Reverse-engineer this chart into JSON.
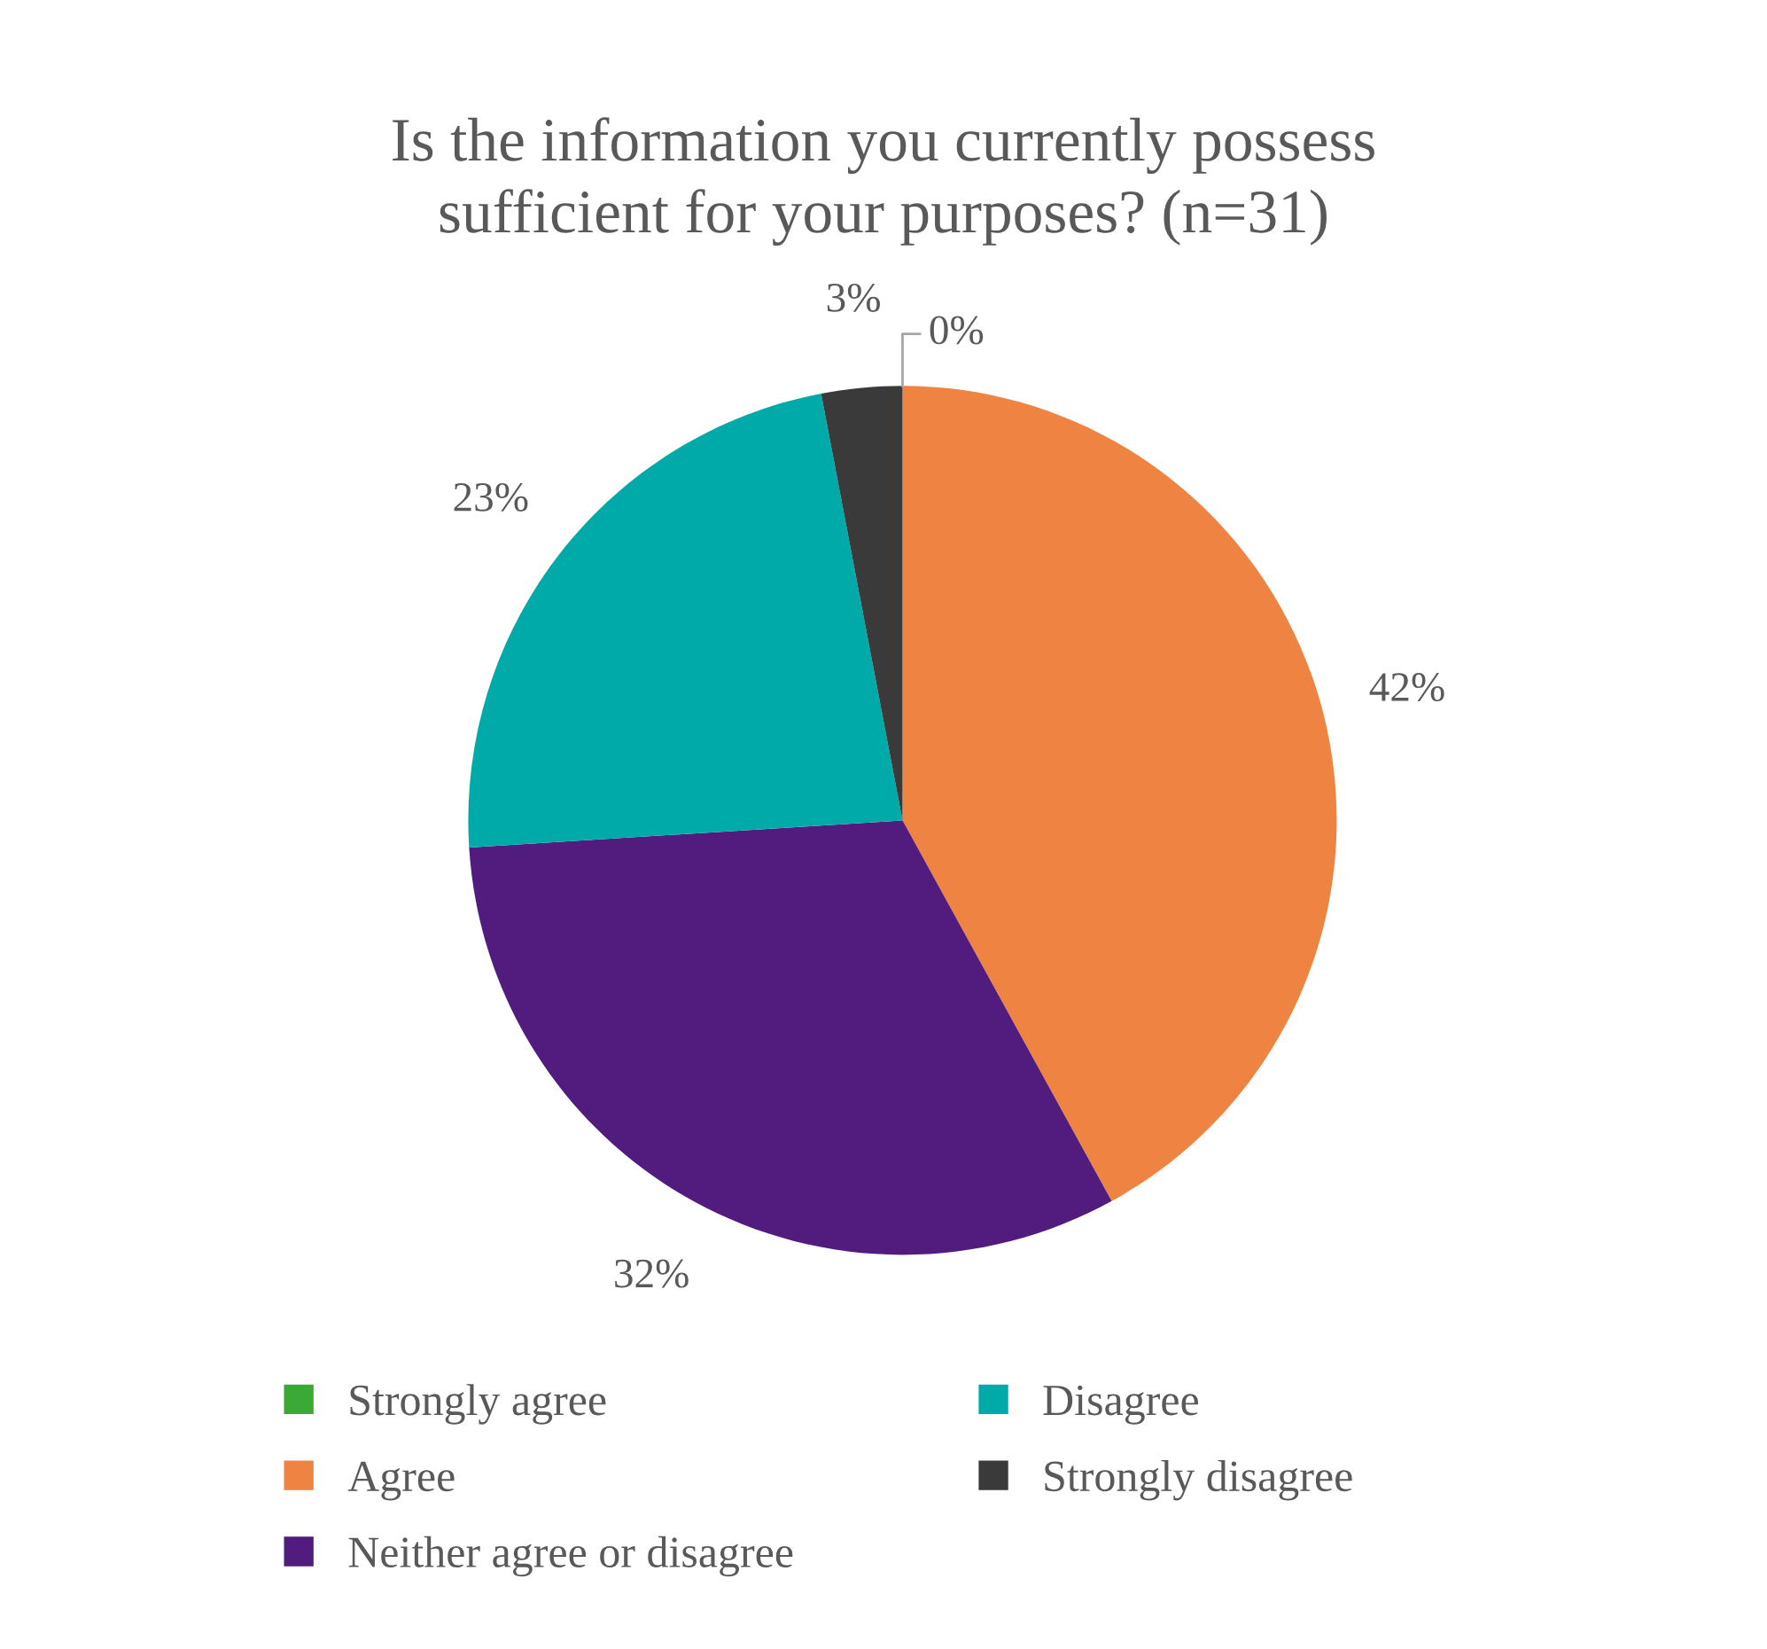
{
  "chart_data": {
    "type": "pie",
    "title": "Is the information you currently possess\nsufficient for your purposes? (n=31)",
    "categories": [
      "Strongly agree",
      "Agree",
      "Neither agree or disagree",
      "Disagree",
      "Strongly disagree"
    ],
    "values": [
      0,
      42,
      32,
      23,
      3
    ],
    "colors": [
      "#3aaa35",
      "#ef8341",
      "#521c7e",
      "#00aaa8",
      "#3a3a3a"
    ],
    "value_labels": [
      "0%",
      "42%",
      "32%",
      "23%",
      "3%"
    ],
    "legend": "bottom"
  }
}
